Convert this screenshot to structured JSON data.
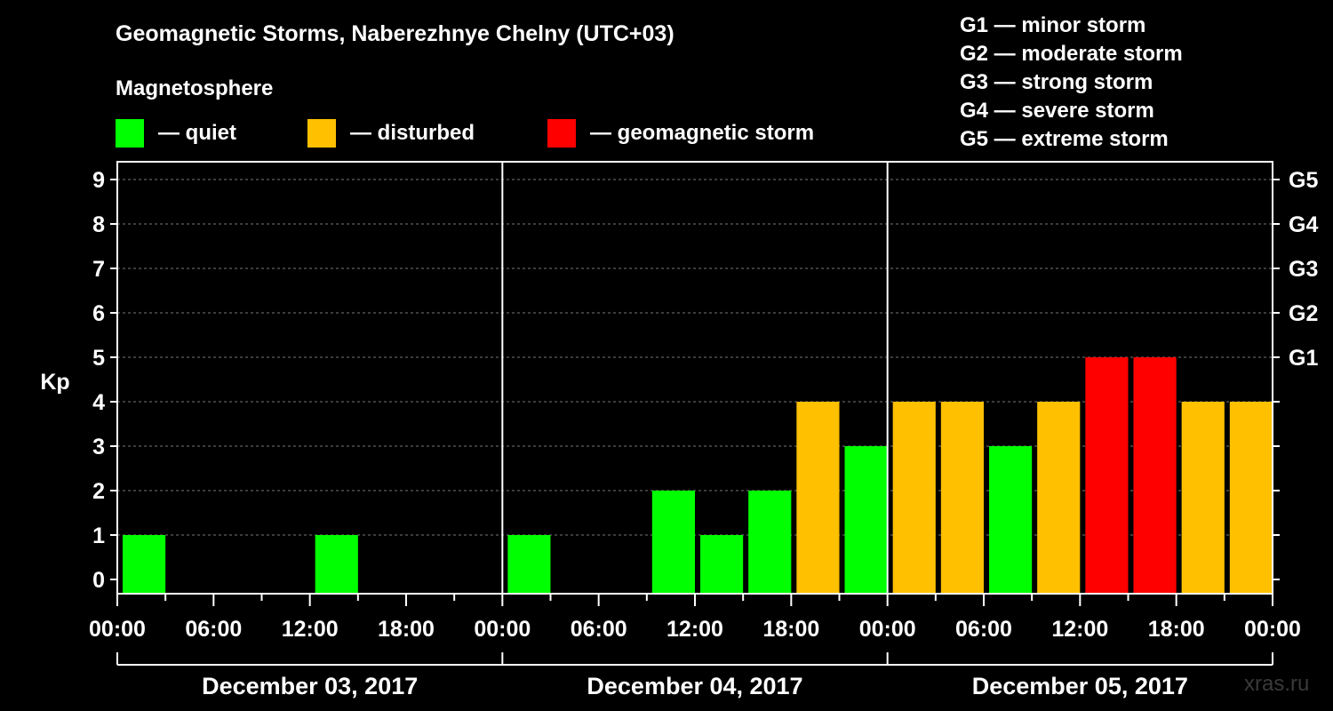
{
  "title": "Geomagnetic Storms, Naberezhnye Chelny (UTC+03)",
  "magnetosphere_label": "Magnetosphere",
  "legend": [
    {
      "label": "— quiet",
      "color": "#00ff00"
    },
    {
      "label": "— disturbed",
      "color": "#ffc000"
    },
    {
      "label": "— geomagnetic storm",
      "color": "#ff0000"
    }
  ],
  "g_scale": [
    "G1 — minor storm",
    "G2 — moderate storm",
    "G3 — strong storm",
    "G4 — severe storm",
    "G5 — extreme storm"
  ],
  "watermark": "xras.ru",
  "chart_data": {
    "type": "bar",
    "title": "Geomagnetic Storms, Naberezhnye Chelny (UTC+03)",
    "ylabel": "Kp",
    "ylim": [
      0,
      9
    ],
    "y_ticks": [
      "0",
      "1",
      "2",
      "3",
      "4",
      "5",
      "6",
      "7",
      "8",
      "9"
    ],
    "right_ticks": [
      {
        "kp": 5,
        "label": "G1"
      },
      {
        "kp": 6,
        "label": "G2"
      },
      {
        "kp": 7,
        "label": "G3"
      },
      {
        "kp": 8,
        "label": "G4"
      },
      {
        "kp": 9,
        "label": "G5"
      }
    ],
    "x_tick_labels": [
      "00:00",
      "06:00",
      "12:00",
      "18:00",
      "00:00",
      "06:00",
      "12:00",
      "18:00",
      "00:00",
      "06:00",
      "12:00",
      "18:00",
      "00:00"
    ],
    "days": [
      "December 03, 2017",
      "December 04, 2017",
      "December 05, 2017"
    ],
    "interval_hours": 3,
    "values": [
      1,
      0,
      0,
      0,
      1,
      0,
      0,
      0,
      1,
      0,
      0,
      2,
      1,
      2,
      4,
      3,
      4,
      4,
      3,
      4,
      5,
      5,
      4,
      4
    ],
    "colors": {
      "quiet": "#00ff00",
      "disturbed": "#ffc000",
      "storm": "#ff0000"
    },
    "grid": "dashed horizontal"
  }
}
